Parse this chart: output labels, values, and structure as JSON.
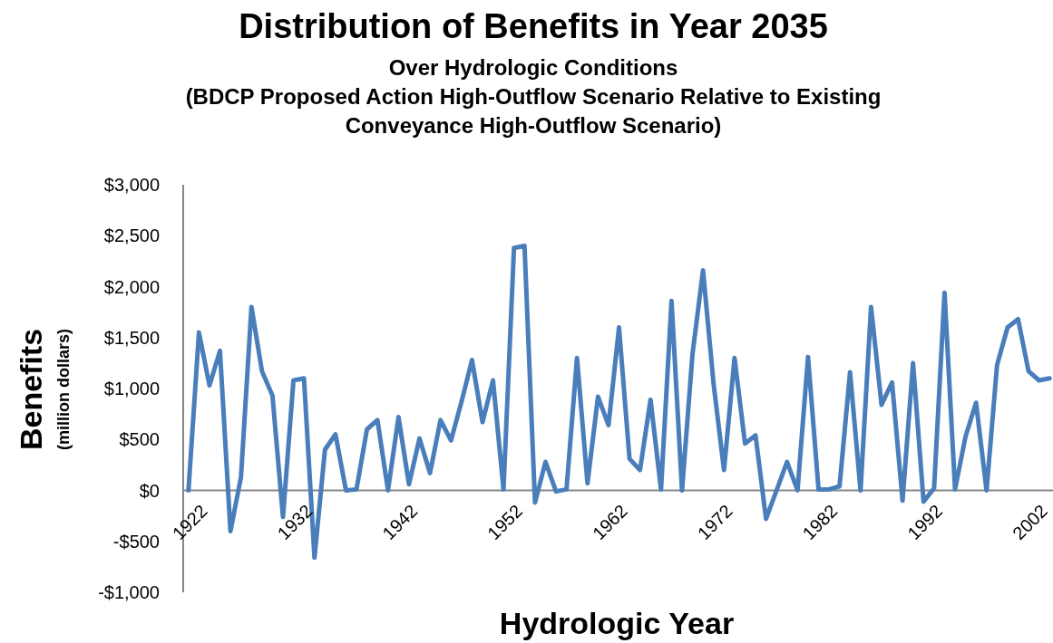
{
  "chart_data": {
    "type": "line",
    "title": "Distribution of Benefits in Year 2035",
    "subtitle": "Over Hydrologic Conditions\n(BDCP Proposed Action High-Outflow Scenario Relative to Existing\nConveyance High-Outflow Scenario)",
    "xlabel": "Hydrologic Year",
    "ylabel": "Benefits\n(million dollars)",
    "categories": [
      "1922",
      null,
      null,
      null,
      null,
      null,
      null,
      null,
      null,
      null,
      "1932",
      null,
      null,
      null,
      null,
      null,
      null,
      null,
      null,
      null,
      "1942",
      null,
      null,
      null,
      null,
      null,
      null,
      null,
      null,
      null,
      "1952",
      null,
      null,
      null,
      null,
      null,
      null,
      null,
      null,
      null,
      "1962",
      null,
      null,
      null,
      null,
      null,
      null,
      null,
      null,
      null,
      "1972",
      null,
      null,
      null,
      null,
      null,
      null,
      null,
      null,
      null,
      "1982",
      null,
      null,
      null,
      null,
      null,
      null,
      null,
      null,
      null,
      "1992",
      null,
      null,
      null,
      null,
      null,
      null,
      null,
      null,
      null,
      "2002",
      null,
      null
    ],
    "series": [
      {
        "color": "#4a7ebb",
        "values": [
          0,
          1550,
          1030,
          1370,
          -400,
          130,
          1800,
          1170,
          930,
          -260,
          1080,
          1100,
          -660,
          400,
          550,
          0,
          10,
          600,
          690,
          0,
          720,
          60,
          510,
          170,
          690,
          490,
          870,
          1280,
          670,
          1080,
          10,
          2380,
          2400,
          -120,
          280,
          -10,
          10,
          1300,
          70,
          920,
          640,
          1600,
          310,
          200,
          890,
          10,
          1860,
          0,
          1340,
          2160,
          1050,
          200,
          1300,
          460,
          540,
          -280,
          0,
          280,
          0,
          1310,
          10,
          10,
          40,
          1160,
          0,
          1800,
          840,
          1060,
          -100,
          1250,
          -110,
          20,
          1940,
          10,
          530,
          860,
          0,
          1230,
          1600,
          1680,
          1170,
          1080,
          1100
        ]
      }
    ],
    "ylim": [
      -1000,
      3000
    ],
    "yticks": [
      {
        "value": -1000,
        "label": "-$1,000"
      },
      {
        "value": -500,
        "label": "-$500"
      },
      {
        "value": 0,
        "label": "$0"
      },
      {
        "value": 500,
        "label": "$500"
      },
      {
        "value": 1000,
        "label": "$1,000"
      },
      {
        "value": 1500,
        "label": "$1,500"
      },
      {
        "value": 2000,
        "label": "$2,000"
      },
      {
        "value": 2500,
        "label": "$2,500"
      },
      {
        "value": 3000,
        "label": "$3,000"
      }
    ],
    "grid": false,
    "marker": "none",
    "line_style": "solid"
  }
}
